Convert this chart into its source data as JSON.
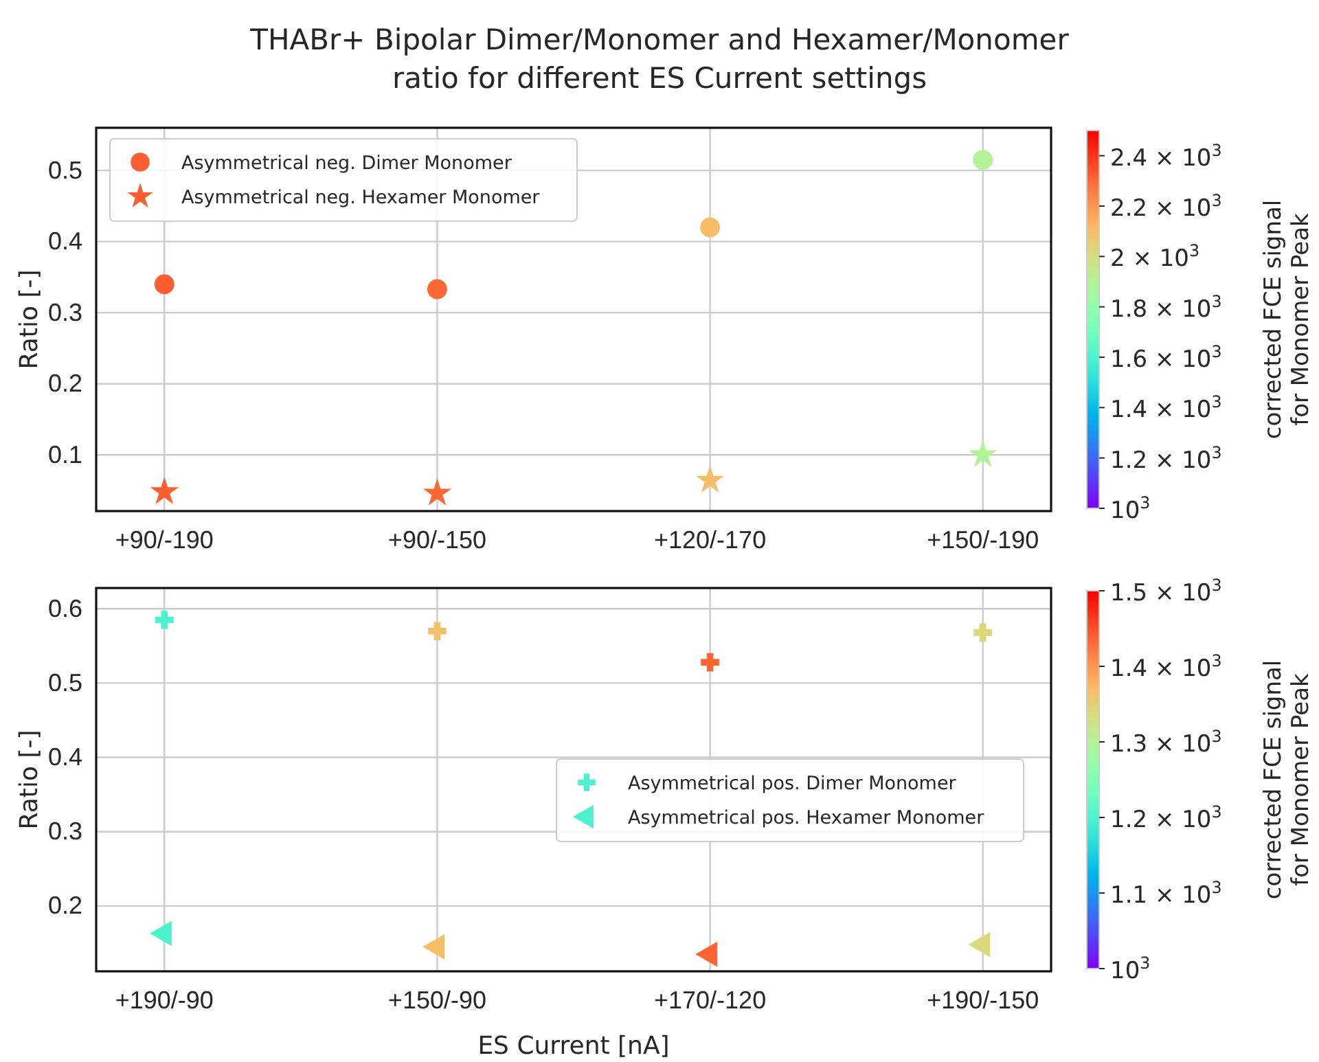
{
  "chart_data": [
    {
      "type": "scatter",
      "title": "THABr+ Bipolar Dimer/Monomer and Hexamer/Monomer\nratio for different ES Current settings",
      "ylabel": "Ratio [-]",
      "clabel": "corrected FCE signal\nfor Monomer Peak",
      "categories": [
        "+90/-190",
        "+90/-150",
        "+120/-170",
        "+150/-190"
      ],
      "series": [
        {
          "name": "Asymmetrical neg. Dimer Monomer",
          "marker": "circle",
          "values": [
            0.34,
            0.333,
            0.42,
            0.515
          ],
          "cvalues": [
            2320,
            2300,
            2100,
            1900
          ],
          "colors": [
            "#ff5e30",
            "#ff6835",
            "#f6bd68",
            "#b3f296"
          ]
        },
        {
          "name": "Asymmetrical neg. Hexamer Monomer",
          "marker": "star",
          "values": [
            0.048,
            0.046,
            0.064,
            0.1
          ],
          "cvalues": [
            2320,
            2300,
            2100,
            1900
          ],
          "colors": [
            "#ff5e30",
            "#ff6835",
            "#f6bd68",
            "#b3f296"
          ]
        }
      ],
      "ylim": [
        0.021,
        0.56
      ],
      "yticks": [
        0.1,
        0.2,
        0.3,
        0.4,
        0.5
      ],
      "clim": [
        1000,
        2500
      ],
      "cticks": [
        {
          "value": 1000,
          "label": "10$^{3}$"
        },
        {
          "value": 1200,
          "label": "1.2 × 10$^{3}$"
        },
        {
          "value": 1400,
          "label": "1.4 × 10$^{3}$"
        },
        {
          "value": 1600,
          "label": "1.6 × 10$^{3}$"
        },
        {
          "value": 1800,
          "label": "1.8 × 10$^{3}$"
        },
        {
          "value": 2000,
          "label": "2 × 10$^{3}$"
        },
        {
          "value": 2200,
          "label": "2.2 × 10$^{3}$"
        },
        {
          "value": 2400,
          "label": "2.4 × 10$^{3}$"
        }
      ],
      "grid": true,
      "legend": "top left"
    },
    {
      "type": "scatter",
      "xlabel": "ES Current [nA]",
      "ylabel": "Ratio [-]",
      "clabel": "corrected FCE signal\nfor Monomer Peak",
      "categories": [
        "+190/-90",
        "+150/-90",
        "+170/-120",
        "+190/-150"
      ],
      "series": [
        {
          "name": "Asymmetrical pos. Dimer Monomer",
          "marker": "cross",
          "values": [
            0.585,
            0.57,
            0.528,
            0.568
          ],
          "cvalues": [
            1200,
            1365,
            1435,
            1340
          ],
          "colors": [
            "#4cf2ce",
            "#f5bf69",
            "#ff6534",
            "#dbd77b"
          ]
        },
        {
          "name": "Asymmetrical pos. Hexamer Monomer",
          "marker": "triangle",
          "values": [
            0.163,
            0.145,
            0.135,
            0.148
          ],
          "cvalues": [
            1200,
            1365,
            1435,
            1340
          ],
          "colors": [
            "#4cf2ce",
            "#f5bf69",
            "#ff6534",
            "#dbd77b"
          ]
        }
      ],
      "ylim": [
        0.112,
        0.628
      ],
      "yticks": [
        0.2,
        0.3,
        0.4,
        0.5,
        0.6
      ],
      "clim": [
        1000,
        1500
      ],
      "cticks": [
        {
          "value": 1000,
          "label": "10$^{3}$"
        },
        {
          "value": 1100,
          "label": "1.1 × 10$^{3}$"
        },
        {
          "value": 1200,
          "label": "1.2 × 10$^{3}$"
        },
        {
          "value": 1300,
          "label": "1.3 × 10$^{3}$"
        },
        {
          "value": 1400,
          "label": "1.4 × 10$^{3}$"
        },
        {
          "value": 1500,
          "label": "1.5 × 10$^{3}$"
        }
      ],
      "grid": true,
      "legend": "right"
    }
  ]
}
